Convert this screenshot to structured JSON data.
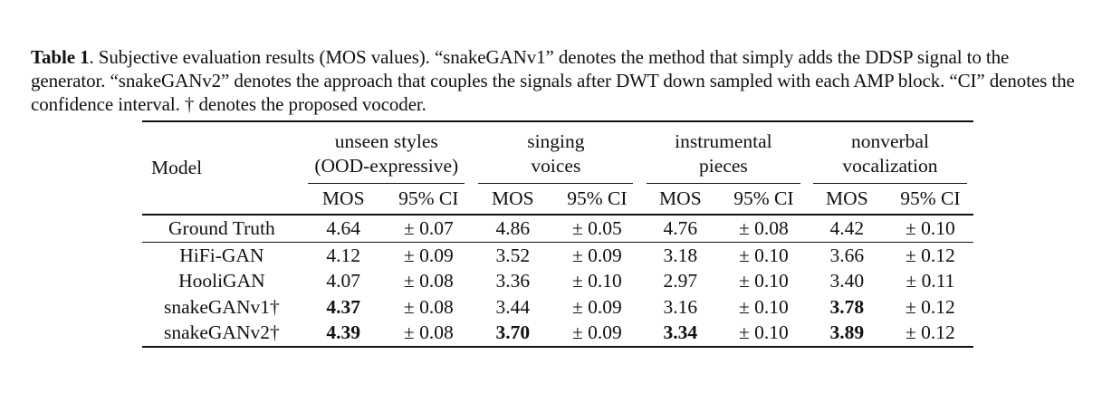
{
  "caption": {
    "label": "Table 1",
    "text": ". Subjective evaluation results (MOS values). “snakeGANv1” denotes the method that simply adds the DDSP signal to the generator. “snakeGANv2” denotes the approach that couples the signals after DWT down sampled with each AMP block. “CI” denotes the confidence interval. † denotes the proposed vocoder."
  },
  "table": {
    "model_header": "Model",
    "groups": [
      {
        "line1": "unseen styles",
        "line2": "(OOD-expressive)"
      },
      {
        "line1": "singing",
        "line2": "voices"
      },
      {
        "line1": "instrumental",
        "line2": "pieces"
      },
      {
        "line1": "nonverbal",
        "line2": "vocalization"
      }
    ],
    "sub_headers": {
      "mos": "MOS",
      "ci": "95% CI"
    },
    "rows": [
      {
        "model": "Ground Truth",
        "cells": [
          {
            "mos": "4.64",
            "ci": "± 0.07",
            "bold": false
          },
          {
            "mos": "4.86",
            "ci": "± 0.05",
            "bold": false
          },
          {
            "mos": "4.76",
            "ci": "± 0.08",
            "bold": false
          },
          {
            "mos": "4.42",
            "ci": "± 0.10",
            "bold": false
          }
        ]
      },
      {
        "model": "HiFi-GAN",
        "cells": [
          {
            "mos": "4.12",
            "ci": "± 0.09",
            "bold": false
          },
          {
            "mos": "3.52",
            "ci": "± 0.09",
            "bold": false
          },
          {
            "mos": "3.18",
            "ci": "± 0.10",
            "bold": false
          },
          {
            "mos": "3.66",
            "ci": "± 0.12",
            "bold": false
          }
        ]
      },
      {
        "model": "HooliGAN",
        "cells": [
          {
            "mos": "4.07",
            "ci": "± 0.08",
            "bold": false
          },
          {
            "mos": "3.36",
            "ci": "± 0.10",
            "bold": false
          },
          {
            "mos": "2.97",
            "ci": "± 0.10",
            "bold": false
          },
          {
            "mos": "3.40",
            "ci": "± 0.11",
            "bold": false
          }
        ]
      },
      {
        "model": "snakeGANv1†",
        "cells": [
          {
            "mos": "4.37",
            "ci": "± 0.08",
            "bold": true
          },
          {
            "mos": "3.44",
            "ci": "± 0.09",
            "bold": false
          },
          {
            "mos": "3.16",
            "ci": "± 0.10",
            "bold": false
          },
          {
            "mos": "3.78",
            "ci": "± 0.12",
            "bold": true
          }
        ]
      },
      {
        "model": "snakeGANv2†",
        "cells": [
          {
            "mos": "4.39",
            "ci": "± 0.08",
            "bold": true
          },
          {
            "mos": "3.70",
            "ci": "± 0.09",
            "bold": true
          },
          {
            "mos": "3.34",
            "ci": "± 0.10",
            "bold": true
          },
          {
            "mos": "3.89",
            "ci": "± 0.12",
            "bold": true
          }
        ]
      }
    ]
  }
}
